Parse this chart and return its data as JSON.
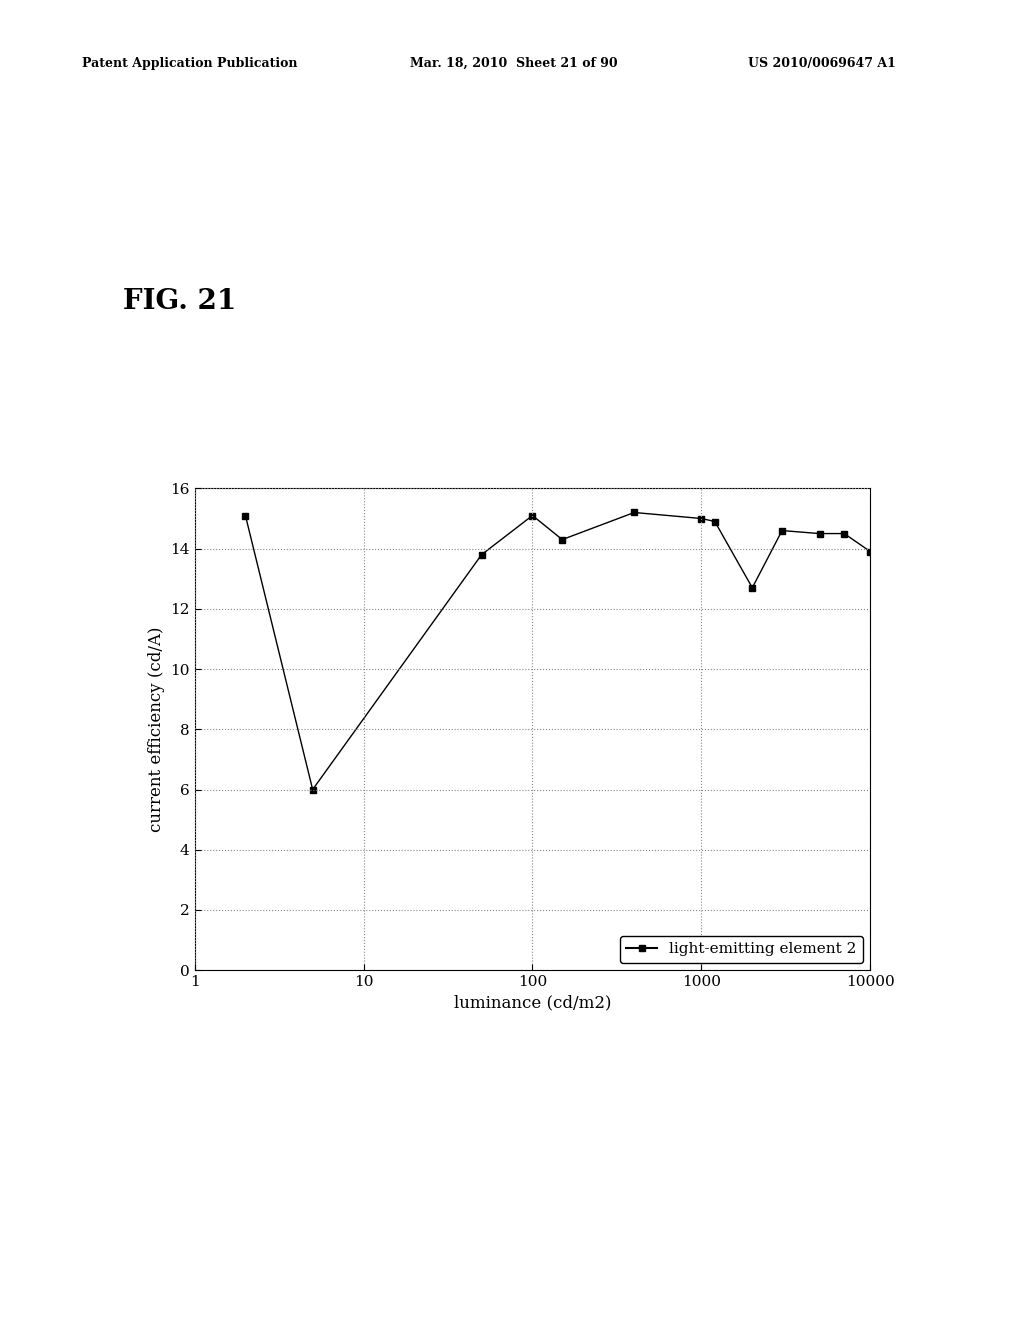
{
  "x_values": [
    2,
    5,
    50,
    100,
    150,
    400,
    1000,
    1200,
    2000,
    3000,
    5000,
    7000,
    10000
  ],
  "y_values": [
    15.1,
    6.0,
    13.8,
    15.1,
    14.3,
    15.2,
    15.0,
    14.9,
    12.7,
    14.6,
    14.5,
    14.5,
    13.9
  ],
  "xlabel": "luminance (cd/m2)",
  "ylabel": "current efficiency (cd/A)",
  "ylim": [
    0,
    16
  ],
  "xlim_log": [
    1,
    10000
  ],
  "yticks": [
    0,
    2,
    4,
    6,
    8,
    10,
    12,
    14,
    16
  ],
  "xticks": [
    1,
    10,
    100,
    1000,
    10000
  ],
  "legend_label": "light-emitting element 2",
  "line_color": "#000000",
  "marker": "s",
  "marker_size": 4,
  "marker_facecolor": "#000000",
  "grid_color": "#888888",
  "grid_linestyle": ":",
  "fig_title": "FIG. 21",
  "header_left": "Patent Application Publication",
  "header_mid": "Mar. 18, 2010  Sheet 21 of 90",
  "header_right": "US 2010/0069647 A1",
  "background_color": "#ffffff",
  "axis_fontsize": 11,
  "label_fontsize": 12,
  "legend_fontsize": 11,
  "fig_title_fontsize": 20,
  "header_fontsize": 9
}
